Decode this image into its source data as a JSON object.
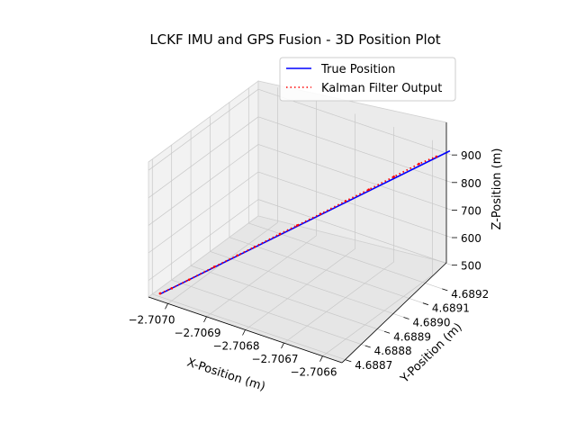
{
  "chart_data": {
    "type": "line",
    "projection": "3d",
    "title": "LCKF IMU and GPS Fusion  - 3D Position Plot",
    "xlabel": "X-Position (m)",
    "ylabel": "Y-Position (m)",
    "zlabel": "Z-Position (m)",
    "xlim": [
      -2.70705,
      -2.70655
    ],
    "ylim": [
      4.68868,
      4.68925
    ],
    "zlim": [
      440,
      930
    ],
    "x_ticks": [
      "−2.7070",
      "−2.7069",
      "−2.7068",
      "−2.7067",
      "−2.7066"
    ],
    "y_ticks": [
      "4.6887",
      "4.6888",
      "4.6889",
      "4.6890",
      "4.6891",
      "4.6892"
    ],
    "z_ticks": [
      "500",
      "600",
      "700",
      "800",
      "900"
    ],
    "grid": true,
    "legend": "top-right",
    "series": [
      {
        "name": "True Position",
        "color": "#0000ff",
        "style": "solid",
        "x": [
          -2.70703,
          -2.70655
        ],
        "y": [
          4.6887,
          4.68924
        ],
        "z": [
          450,
          920
        ]
      },
      {
        "name": "Kalman Filter Output",
        "color": "#ff0000",
        "style": "dotted",
        "x": [
          -2.70703,
          -2.70701,
          -2.70698,
          -2.70694,
          -2.7069,
          -2.70687,
          -2.70683,
          -2.7068,
          -2.70676,
          -2.70672,
          -2.70668,
          -2.70664,
          -2.7066,
          -2.70657
        ],
        "y": [
          4.6887,
          4.68872,
          4.68875,
          4.6888,
          4.68884,
          4.68887,
          4.68892,
          4.68895,
          4.68899,
          4.68904,
          4.68908,
          4.68913,
          4.68918,
          4.68921
        ],
        "z": [
          452,
          470,
          500,
          540,
          580,
          610,
          650,
          680,
          720,
          760,
          800,
          840,
          880,
          905
        ]
      }
    ]
  }
}
